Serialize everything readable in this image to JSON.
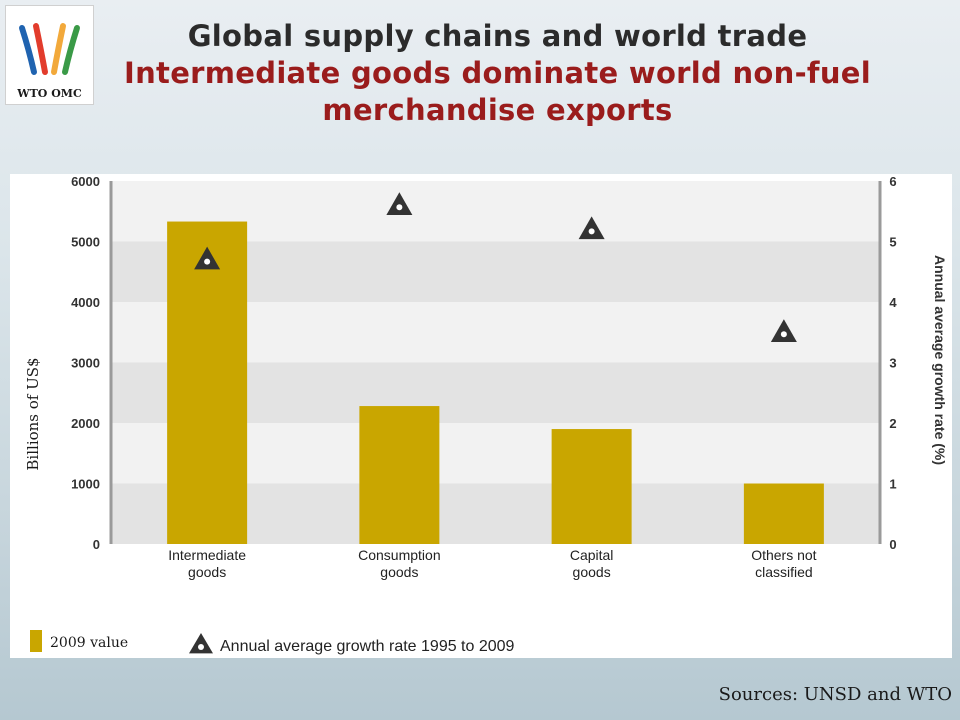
{
  "header": {
    "logo_text": "WTO OMC",
    "title_line1": "Global supply chains and world trade",
    "title_line2": "Intermediate goods dominate world non-fuel",
    "title_line3": "merchandise exports"
  },
  "colors": {
    "bar": "#c9a600",
    "band_dark": "#e3e3e3",
    "band_light": "#f2f2f2",
    "marker": "#333333",
    "title_red": "#9a1c1c"
  },
  "chart_data": {
    "type": "bar",
    "categories": [
      [
        "Intermediate",
        "goods"
      ],
      [
        "Consumption",
        "goods"
      ],
      [
        "Capital",
        "goods"
      ],
      [
        "Others not",
        "classified"
      ]
    ],
    "series": [
      {
        "name": "2009 value",
        "axis": "left",
        "values": [
          5330,
          2280,
          1900,
          1000
        ]
      },
      {
        "name": "Annual average growth rate 1995 to 2009",
        "axis": "right",
        "marker": "triangle",
        "values": [
          4.7,
          5.6,
          5.2,
          3.5
        ]
      }
    ],
    "ylabel": "Billions  of US$",
    "y2label": "Annual average growth rate (%)",
    "ylim": [
      0,
      6000
    ],
    "y2lim": [
      0,
      6
    ],
    "yticks": [
      "0",
      "1000",
      "2000",
      "3000",
      "4000",
      "5000",
      "6000"
    ],
    "y2ticks": [
      "0",
      "1",
      "2",
      "3",
      "4",
      "5",
      "6"
    ],
    "grid": "alternating horizontal bands",
    "legend_position": "bottom-left"
  },
  "footer": {
    "sources": "Sources: UNSD and WTO"
  }
}
